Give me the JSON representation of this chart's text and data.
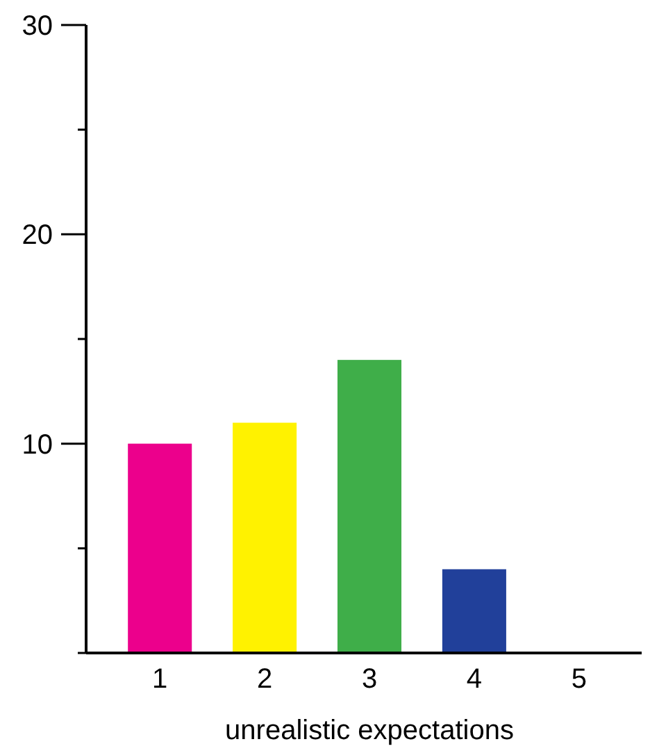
{
  "chart_data": {
    "type": "bar",
    "xlabel": "unrealistic expectations",
    "categories": [
      "1",
      "2",
      "3",
      "4",
      "5"
    ],
    "values": [
      10,
      11,
      14,
      4,
      null
    ],
    "colors": [
      "#ec008c",
      "#fff200",
      "#3fae49",
      "#21409a",
      null
    ],
    "ylim": [
      0,
      30
    ],
    "yticks": [
      {
        "value": 0,
        "label": null
      },
      {
        "value": 5,
        "label": null
      },
      10,
      {
        "value": 15,
        "label": null
      },
      20,
      {
        "value": 25,
        "label": null
      },
      30
    ],
    "grid": false
  }
}
